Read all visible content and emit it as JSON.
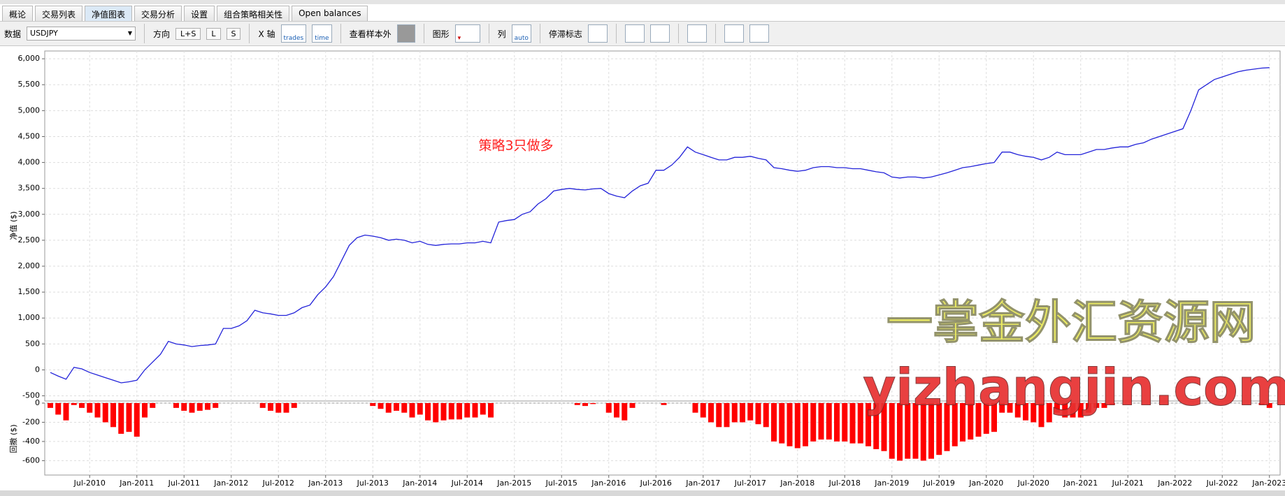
{
  "tabs": [
    "概论",
    "交易列表",
    "净值图表",
    "交易分析",
    "设置",
    "组合策略相关性",
    "Open balances"
  ],
  "toolbar": {
    "data_label": "数据",
    "symbol": "USDJPY",
    "direction_label": "方向",
    "directions": [
      "L+S",
      "L",
      "S"
    ],
    "x_axis_label": "X 轴",
    "x_axis_options": [
      "trades",
      "time"
    ],
    "out_of_sample": "查看样本外",
    "chart_label": "图形",
    "column_label": "列",
    "column_option": "auto",
    "stagnation_label": "停滞标志"
  },
  "watermark": [
    "一掌金外汇资源网",
    "yizhangjin.com"
  ],
  "chart_data": [
    {
      "type": "line",
      "y_label": "净值 ($)",
      "annotation": "策略3只做多",
      "color": "#2323d9",
      "grid": true,
      "x": [
        "Feb-2010",
        "Mar-2010",
        "Apr-2010",
        "May-2010",
        "Jun-2010",
        "Jul-2010",
        "Aug-2010",
        "Sep-2010",
        "Oct-2010",
        "Nov-2010",
        "Dec-2010",
        "Jan-2011",
        "Feb-2011",
        "Mar-2011",
        "Apr-2011",
        "May-2011",
        "Jun-2011",
        "Jul-2011",
        "Aug-2011",
        "Sep-2011",
        "Oct-2011",
        "Nov-2011",
        "Dec-2011",
        "Jan-2012",
        "Feb-2012",
        "Mar-2012",
        "Apr-2012",
        "May-2012",
        "Jun-2012",
        "Jul-2012",
        "Aug-2012",
        "Sep-2012",
        "Oct-2012",
        "Nov-2012",
        "Dec-2012",
        "Jan-2013",
        "Feb-2013",
        "Mar-2013",
        "Apr-2013",
        "May-2013",
        "Jun-2013",
        "Jul-2013",
        "Aug-2013",
        "Sep-2013",
        "Oct-2013",
        "Nov-2013",
        "Dec-2013",
        "Jan-2014",
        "Feb-2014",
        "Mar-2014",
        "Apr-2014",
        "May-2014",
        "Jun-2014",
        "Jul-2014",
        "Aug-2014",
        "Sep-2014",
        "Oct-2014",
        "Nov-2014",
        "Dec-2014",
        "Jan-2015",
        "Feb-2015",
        "Mar-2015",
        "Apr-2015",
        "May-2015",
        "Jun-2015",
        "Jul-2015",
        "Aug-2015",
        "Sep-2015",
        "Oct-2015",
        "Nov-2015",
        "Dec-2015",
        "Jan-2016",
        "Feb-2016",
        "Mar-2016",
        "Apr-2016",
        "May-2016",
        "Jun-2016",
        "Jul-2016",
        "Aug-2016",
        "Sep-2016",
        "Oct-2016",
        "Nov-2016",
        "Dec-2016",
        "Jan-2017",
        "Feb-2017",
        "Mar-2017",
        "Apr-2017",
        "May-2017",
        "Jun-2017",
        "Jul-2017",
        "Aug-2017",
        "Sep-2017",
        "Oct-2017",
        "Nov-2017",
        "Dec-2017",
        "Jan-2018",
        "Feb-2018",
        "Mar-2018",
        "Apr-2018",
        "May-2018",
        "Jun-2018",
        "Jul-2018",
        "Aug-2018",
        "Sep-2018",
        "Oct-2018",
        "Nov-2018",
        "Dec-2018",
        "Jan-2019",
        "Feb-2019",
        "Mar-2019",
        "Apr-2019",
        "May-2019",
        "Jun-2019",
        "Jul-2019",
        "Aug-2019",
        "Sep-2019",
        "Oct-2019",
        "Nov-2019",
        "Dec-2019",
        "Jan-2020",
        "Feb-2020",
        "Mar-2020",
        "Apr-2020",
        "May-2020",
        "Jun-2020",
        "Jul-2020",
        "Aug-2020",
        "Sep-2020",
        "Oct-2020",
        "Nov-2020",
        "Dec-2020",
        "Jan-2021",
        "Feb-2021",
        "Mar-2021",
        "Apr-2021",
        "May-2021",
        "Jun-2021",
        "Jul-2021",
        "Aug-2021",
        "Sep-2021",
        "Oct-2021",
        "Nov-2021",
        "Dec-2021",
        "Jan-2022",
        "Feb-2022",
        "Mar-2022",
        "Apr-2022",
        "May-2022",
        "Jun-2022",
        "Jul-2022",
        "Aug-2022",
        "Sep-2022",
        "Oct-2022",
        "Nov-2022",
        "Dec-2022",
        "Jan-2023"
      ],
      "values": [
        -50,
        -120,
        -180,
        50,
        20,
        -50,
        -100,
        -150,
        -200,
        -250,
        -230,
        -200,
        0,
        150,
        300,
        550,
        500,
        480,
        450,
        470,
        480,
        500,
        800,
        800,
        850,
        950,
        1150,
        1100,
        1080,
        1050,
        1050,
        1100,
        1200,
        1250,
        1450,
        1600,
        1800,
        2100,
        2400,
        2550,
        2600,
        2580,
        2550,
        2500,
        2520,
        2500,
        2450,
        2480,
        2420,
        2400,
        2420,
        2430,
        2430,
        2450,
        2450,
        2480,
        2450,
        2850,
        2880,
        2900,
        3000,
        3050,
        3200,
        3300,
        3450,
        3480,
        3500,
        3480,
        3470,
        3490,
        3500,
        3400,
        3350,
        3320,
        3450,
        3550,
        3600,
        3850,
        3850,
        3950,
        4100,
        4300,
        4200,
        4150,
        4100,
        4050,
        4050,
        4100,
        4100,
        4120,
        4080,
        4050,
        3900,
        3880,
        3850,
        3830,
        3850,
        3900,
        3920,
        3920,
        3900,
        3900,
        3880,
        3880,
        3850,
        3820,
        3800,
        3720,
        3700,
        3720,
        3720,
        3700,
        3720,
        3760,
        3800,
        3850,
        3900,
        3920,
        3950,
        3980,
        4000,
        4200,
        4200,
        4150,
        4120,
        4100,
        4050,
        4100,
        4200,
        4150,
        4150,
        4150,
        4200,
        4250,
        4250,
        4280,
        4300,
        4300,
        4350,
        4380,
        4450,
        4500,
        4550,
        4600,
        4650,
        5000,
        5400,
        5500,
        5600,
        5650,
        5700,
        5750,
        5780,
        5800,
        5820,
        5830
      ],
      "ylim": [
        -600,
        6150
      ],
      "yticks": [
        -500,
        0,
        500,
        {
          "value": 1000,
          "label": "1,000"
        },
        {
          "value": 1500,
          "label": "1,500"
        },
        {
          "value": 2000,
          "label": "2,000"
        },
        {
          "value": 2500,
          "label": "2,500"
        },
        {
          "value": 3000,
          "label": "3,000"
        },
        {
          "value": 3500,
          "label": "3,500"
        },
        {
          "value": 4000,
          "label": "4,000"
        },
        {
          "value": 4500,
          "label": "4,500"
        },
        {
          "value": 5000,
          "label": "5,000"
        },
        {
          "value": 5500,
          "label": "5,500"
        },
        {
          "value": 6000,
          "label": "6,000"
        }
      ]
    },
    {
      "type": "bar",
      "y_label": "回撤 ($)",
      "color": "#ff0000",
      "grid": true,
      "categories": [
        "Feb-2010",
        "Mar-2010",
        "Apr-2010",
        "May-2010",
        "Jun-2010",
        "Jul-2010",
        "Aug-2010",
        "Sep-2010",
        "Oct-2010",
        "Nov-2010",
        "Dec-2010",
        "Jan-2011",
        "Feb-2011",
        "Mar-2011",
        "Apr-2011",
        "May-2011",
        "Jun-2011",
        "Jul-2011",
        "Aug-2011",
        "Sep-2011",
        "Oct-2011",
        "Nov-2011",
        "Dec-2011",
        "Jan-2012",
        "Feb-2012",
        "Mar-2012",
        "Apr-2012",
        "May-2012",
        "Jun-2012",
        "Jul-2012",
        "Aug-2012",
        "Sep-2012",
        "Oct-2012",
        "Nov-2012",
        "Dec-2012",
        "Jan-2013",
        "Feb-2013",
        "Mar-2013",
        "Apr-2013",
        "May-2013",
        "Jun-2013",
        "Jul-2013",
        "Aug-2013",
        "Sep-2013",
        "Oct-2013",
        "Nov-2013",
        "Dec-2013",
        "Jan-2014",
        "Feb-2014",
        "Mar-2014",
        "Apr-2014",
        "May-2014",
        "Jun-2014",
        "Jul-2014",
        "Aug-2014",
        "Sep-2014",
        "Oct-2014",
        "Nov-2014",
        "Dec-2014",
        "Jan-2015",
        "Feb-2015",
        "Mar-2015",
        "Apr-2015",
        "May-2015",
        "Jun-2015",
        "Jul-2015",
        "Aug-2015",
        "Sep-2015",
        "Oct-2015",
        "Nov-2015",
        "Dec-2015",
        "Jan-2016",
        "Feb-2016",
        "Mar-2016",
        "Apr-2016",
        "May-2016",
        "Jun-2016",
        "Jul-2016",
        "Aug-2016",
        "Sep-2016",
        "Oct-2016",
        "Nov-2016",
        "Dec-2016",
        "Jan-2017",
        "Feb-2017",
        "Mar-2017",
        "Apr-2017",
        "May-2017",
        "Jun-2017",
        "Jul-2017",
        "Aug-2017",
        "Sep-2017",
        "Oct-2017",
        "Nov-2017",
        "Dec-2017",
        "Jan-2018",
        "Feb-2018",
        "Mar-2018",
        "Apr-2018",
        "May-2018",
        "Jun-2018",
        "Jul-2018",
        "Aug-2018",
        "Sep-2018",
        "Oct-2018",
        "Nov-2018",
        "Dec-2018",
        "Jan-2019",
        "Feb-2019",
        "Mar-2019",
        "Apr-2019",
        "May-2019",
        "Jun-2019",
        "Jul-2019",
        "Aug-2019",
        "Sep-2019",
        "Oct-2019",
        "Nov-2019",
        "Dec-2019",
        "Jan-2020",
        "Feb-2020",
        "Mar-2020",
        "Apr-2020",
        "May-2020",
        "Jun-2020",
        "Jul-2020",
        "Aug-2020",
        "Sep-2020",
        "Oct-2020",
        "Nov-2020",
        "Dec-2020",
        "Jan-2021",
        "Feb-2021",
        "Mar-2021",
        "Apr-2021",
        "May-2021",
        "Jun-2021",
        "Jul-2021",
        "Aug-2021",
        "Sep-2021",
        "Oct-2021",
        "Nov-2021",
        "Dec-2021",
        "Jan-2022",
        "Feb-2022",
        "Mar-2022",
        "Apr-2022",
        "May-2022",
        "Jun-2022",
        "Jul-2022",
        "Aug-2022",
        "Sep-2022",
        "Oct-2022",
        "Nov-2022",
        "Dec-2022",
        "Jan-2023"
      ],
      "values": [
        -50,
        -120,
        -180,
        -20,
        -50,
        -100,
        -150,
        -200,
        -250,
        -320,
        -300,
        -350,
        -150,
        -50,
        0,
        0,
        -50,
        -80,
        -100,
        -80,
        -70,
        -50,
        0,
        0,
        0,
        0,
        0,
        -50,
        -80,
        -100,
        -100,
        -50,
        0,
        0,
        0,
        0,
        0,
        0,
        0,
        0,
        0,
        -30,
        -60,
        -100,
        -80,
        -100,
        -150,
        -120,
        -180,
        -200,
        -180,
        -170,
        -170,
        -150,
        -150,
        -120,
        -150,
        0,
        0,
        0,
        0,
        0,
        0,
        0,
        0,
        0,
        0,
        -20,
        -30,
        -10,
        0,
        -100,
        -150,
        -180,
        -50,
        0,
        0,
        0,
        -20,
        0,
        0,
        0,
        -100,
        -150,
        -200,
        -250,
        -250,
        -200,
        -200,
        -180,
        -220,
        -250,
        -400,
        -420,
        -450,
        -470,
        -450,
        -400,
        -380,
        -380,
        -400,
        -400,
        -420,
        -420,
        -450,
        -480,
        -500,
        -580,
        -600,
        -580,
        -580,
        -600,
        -580,
        -540,
        -500,
        -450,
        -400,
        -380,
        -350,
        -320,
        -300,
        -100,
        -100,
        -150,
        -180,
        -200,
        -250,
        -200,
        -100,
        -150,
        -150,
        -150,
        -100,
        -50,
        -50,
        -20,
        0,
        0,
        0,
        0,
        0,
        0,
        0,
        0,
        0,
        0,
        0,
        0,
        0,
        0,
        0,
        0,
        0,
        0,
        -20,
        -50
      ],
      "ylim": [
        -750,
        0
      ],
      "yticks": [
        0,
        -200,
        -400,
        -600
      ],
      "xticks": [
        "Jul-2010",
        "Jan-2011",
        "Jul-2011",
        "Jan-2012",
        "Jul-2012",
        "Jan-2013",
        "Jul-2013",
        "Jan-2014",
        "Jul-2014",
        "Jan-2015",
        "Jul-2015",
        "Jan-2016",
        "Jul-2016",
        "Jan-2017",
        "Jul-2017",
        "Jan-2018",
        "Jul-2018",
        "Jan-2019",
        "Jul-2019",
        "Jan-2020",
        "Jul-2020",
        "Jan-2021",
        "Jul-2021",
        "Jan-2022",
        "Jul-2022",
        "Jan-2023"
      ]
    }
  ]
}
